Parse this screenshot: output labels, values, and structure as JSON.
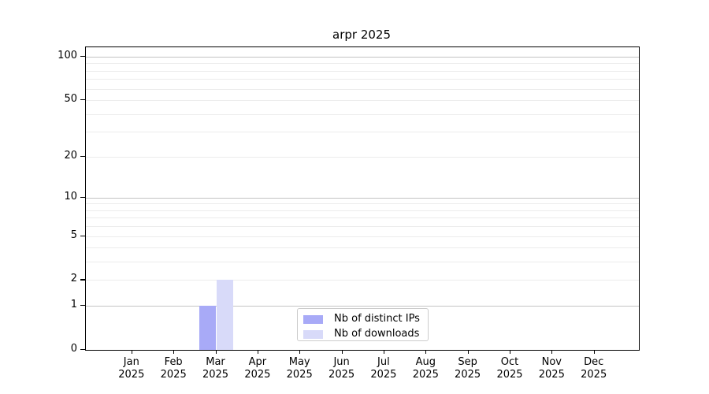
{
  "title": "arpr 2025",
  "chart_data": {
    "type": "bar",
    "title": "arpr 2025",
    "categories": [
      "Jan 2025",
      "Feb 2025",
      "Mar 2025",
      "Apr 2025",
      "May 2025",
      "Jun 2025",
      "Jul 2025",
      "Aug 2025",
      "Sep 2025",
      "Oct 2025",
      "Nov 2025",
      "Dec 2025"
    ],
    "x_tick_line1": [
      "Jan",
      "Feb",
      "Mar",
      "Apr",
      "May",
      "Jun",
      "Jul",
      "Aug",
      "Sep",
      "Oct",
      "Nov",
      "Dec"
    ],
    "x_tick_line2": "2025",
    "series": [
      {
        "name": "Nb of distinct IPs",
        "color": "#a8aaf7",
        "values": [
          0,
          0,
          1,
          0,
          0,
          0,
          0,
          0,
          0,
          0,
          0,
          0
        ]
      },
      {
        "name": "Nb of downloads",
        "color": "#d8daf9",
        "values": [
          0,
          0,
          2,
          0,
          0,
          0,
          0,
          0,
          0,
          0,
          0,
          0
        ]
      }
    ],
    "xlabel": "",
    "ylabel": "",
    "yscale": "log1p",
    "ylim": [
      0,
      116
    ],
    "yticks": [
      0,
      1,
      2,
      5,
      10,
      20,
      50,
      100
    ],
    "major_gridlines": [
      1,
      10,
      100
    ],
    "minor_gridlines": [
      2,
      3,
      4,
      5,
      6,
      7,
      8,
      9,
      20,
      30,
      40,
      50,
      60,
      70,
      80,
      90
    ],
    "grid": "on",
    "legend_position": "lower center",
    "legend": [
      "Nb of distinct IPs",
      "Nb of downloads"
    ]
  },
  "colors": {
    "series1": "#a8aaf7",
    "series2": "#d8daf9",
    "major_grid": "#c3c3c3",
    "minor_grid": "#ececec",
    "axis": "#000000",
    "legend_border": "#cccccc",
    "background": "#ffffff"
  }
}
